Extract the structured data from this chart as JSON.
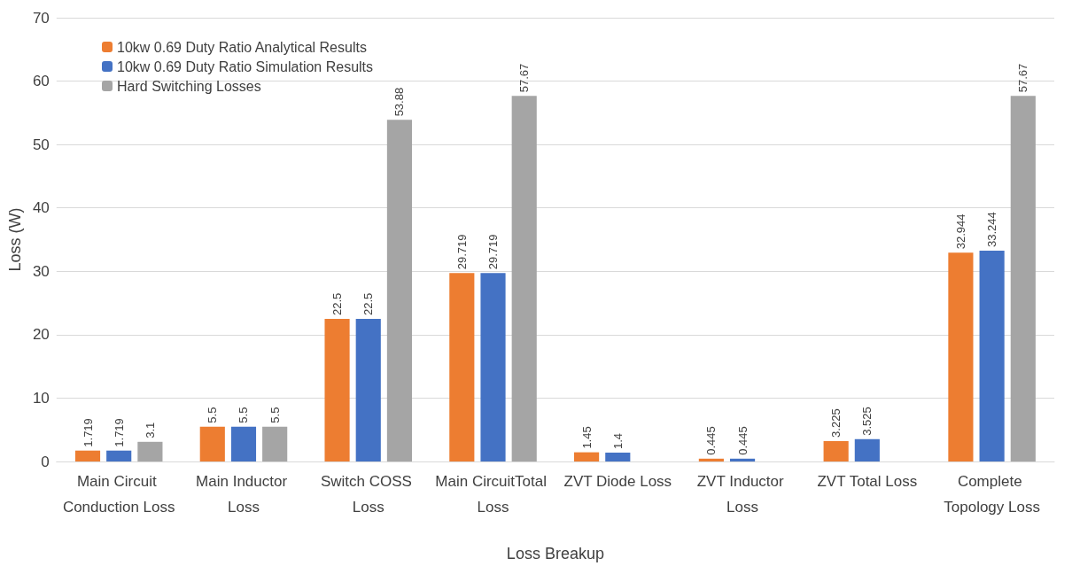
{
  "chart_data": {
    "type": "bar",
    "xlabel": "Loss Breakup",
    "ylabel": "Loss (W)",
    "categories": [
      "Main Circuit Conduction Loss",
      "Main Inductor Loss",
      "Switch COSS Loss",
      "Main CircuitTotal Loss",
      "ZVT Diode Loss",
      "ZVT Inductor Loss",
      "ZVT Total Loss",
      "Complete Topology Loss"
    ],
    "series": [
      {
        "name": "10kw 0.69 Duty Ratio Analytical Results",
        "color": "#ed7d31",
        "values": [
          1.719,
          5.5,
          22.5,
          29.719,
          1.45,
          0.445,
          3.225,
          32.944
        ]
      },
      {
        "name": "10kw 0.69 Duty Ratio Simulation Results",
        "color": "#4472c4",
        "values": [
          1.719,
          5.5,
          22.5,
          29.719,
          1.4,
          0.445,
          3.525,
          33.244
        ]
      },
      {
        "name": "Hard Switching Losses",
        "color": "#a5a5a5",
        "values": [
          3.1,
          5.5,
          53.88,
          57.67,
          null,
          null,
          null,
          57.67
        ]
      }
    ],
    "ylim": [
      0,
      70
    ],
    "yticks": [
      0,
      10,
      20,
      30,
      40,
      50,
      60,
      70
    ],
    "grid": "y",
    "legend": "top left",
    "data_labels": true
  }
}
